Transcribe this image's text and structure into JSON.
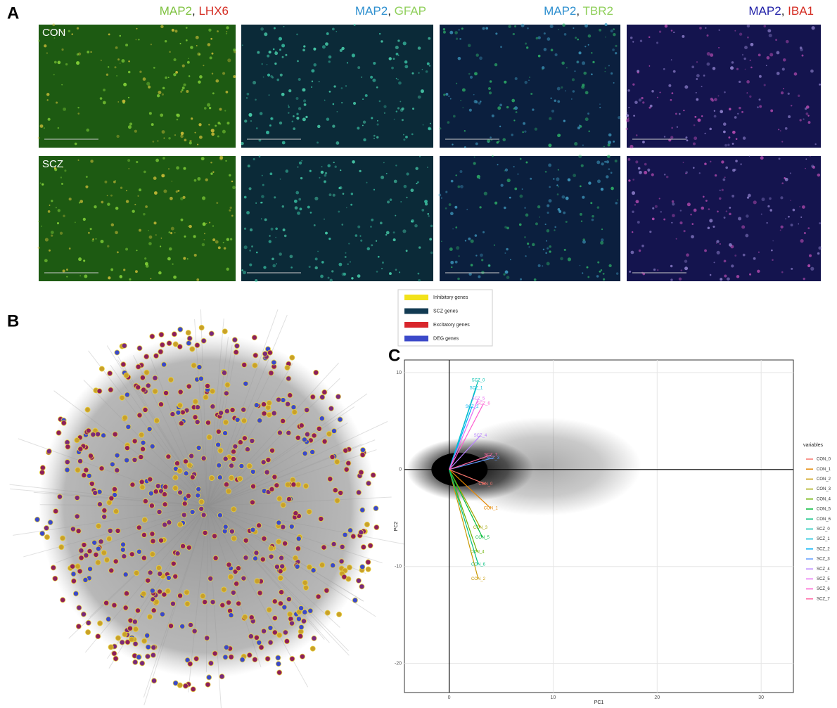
{
  "figure": {
    "A": {
      "label": "A",
      "rows": [
        "CON",
        "SCZ"
      ],
      "columns": [
        {
          "parts": [
            "MAP2",
            ", ",
            "LHX6"
          ],
          "colors": [
            "#7fc241",
            "#222222",
            "#d42a20"
          ]
        },
        {
          "parts": [
            "MAP2",
            ", ",
            "GFAP"
          ],
          "colors": [
            "#2d8fcf",
            "#222222",
            "#8fcf5a"
          ]
        },
        {
          "parts": [
            "MAP2",
            ", ",
            "TBR2"
          ],
          "colors": [
            "#2d8fcf",
            "#222222",
            "#8fcf5a"
          ]
        },
        {
          "parts": [
            "MAP2",
            ", ",
            "IBA1"
          ],
          "colors": [
            "#2222a8",
            "#222222",
            "#d42a20"
          ]
        }
      ]
    },
    "B": {
      "label": "B",
      "legend": [
        {
          "name": "Inhibitory genes",
          "color": "#f2e21a"
        },
        {
          "name": "SCZ genes",
          "color": "#123a52"
        },
        {
          "name": "Excitatory genes",
          "color": "#d8262c"
        },
        {
          "name": "DEG genes",
          "color": "#3b49c9"
        }
      ]
    }
  },
  "chart_data": {
    "type": "biplot",
    "label": "C",
    "xlabel": "PC1",
    "ylabel": "PC2",
    "xlim": [
      -4.3,
      33.1
    ],
    "ylim": [
      -23,
      11.3
    ],
    "xticks": [
      0,
      10,
      20,
      30
    ],
    "yticks": [
      -20,
      -10,
      0,
      10
    ],
    "grid": true,
    "legend_title": "variables",
    "series": [
      {
        "name": "CON_0",
        "color": "#F8766D",
        "x": 3.5,
        "y": -1.5
      },
      {
        "name": "CON_1",
        "color": "#E58700",
        "x": 4,
        "y": -4
      },
      {
        "name": "CON_2",
        "color": "#C99800",
        "x": 2.8,
        "y": -11.3
      },
      {
        "name": "CON_3",
        "color": "#A3A500",
        "x": 3,
        "y": -6
      },
      {
        "name": "CON_4",
        "color": "#6BB100",
        "x": 2.7,
        "y": -8.5
      },
      {
        "name": "CON_5",
        "color": "#00BA38",
        "x": 3.2,
        "y": -7
      },
      {
        "name": "CON_6",
        "color": "#00BF7D",
        "x": 2.8,
        "y": -9.8
      },
      {
        "name": "SCZ_0",
        "color": "#00C0AF",
        "x": 2.8,
        "y": 9.2
      },
      {
        "name": "SCZ_1",
        "color": "#00BCD8",
        "x": 2.6,
        "y": 8.4
      },
      {
        "name": "SCZ_2",
        "color": "#00B0F6",
        "x": 2.2,
        "y": 6.5
      },
      {
        "name": "SCZ_3",
        "color": "#619CFF",
        "x": 4.2,
        "y": 1.2
      },
      {
        "name": "SCZ_4",
        "color": "#B983FF",
        "x": 3,
        "y": 3.5
      },
      {
        "name": "SCZ_5",
        "color": "#E76BF3",
        "x": 2.8,
        "y": 7.3
      },
      {
        "name": "SCZ_6",
        "color": "#FD61D1",
        "x": 3.3,
        "y": 6.8
      },
      {
        "name": "SCZ_7",
        "color": "#FF67A4",
        "x": 4,
        "y": 1.5
      }
    ]
  }
}
